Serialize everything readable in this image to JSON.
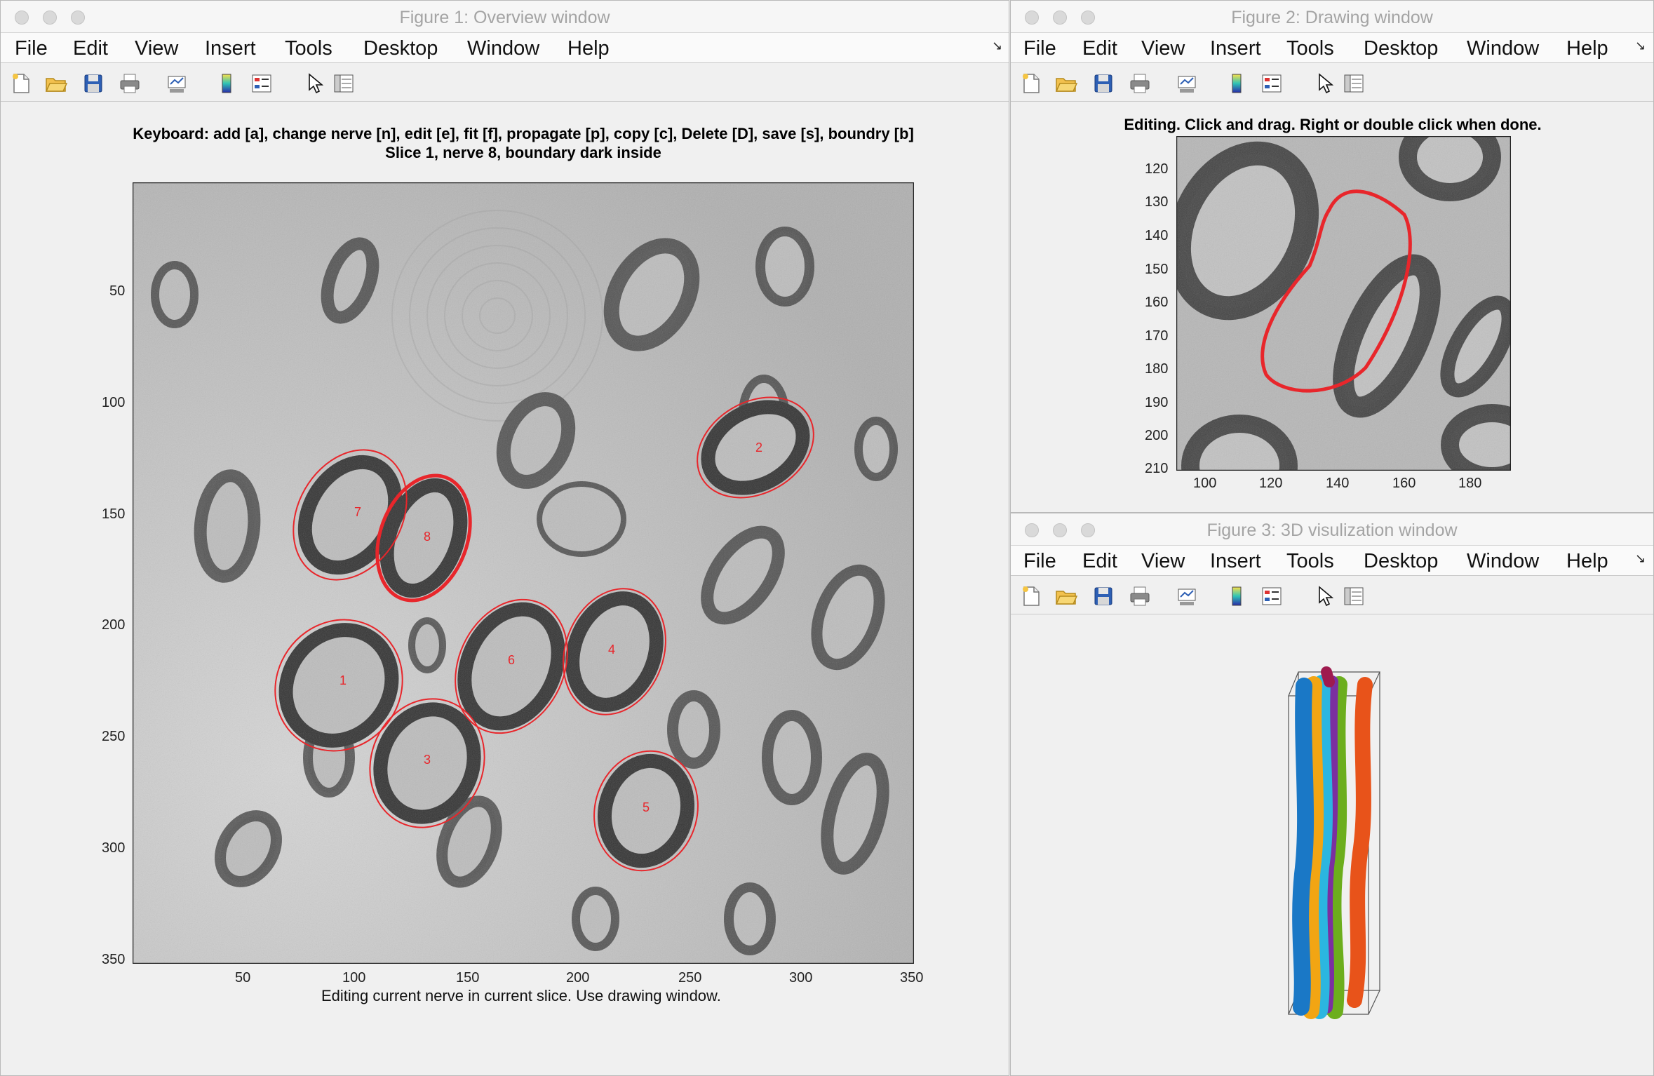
{
  "menu_items": [
    "File",
    "Edit",
    "View",
    "Insert",
    "Tools",
    "Desktop",
    "Window",
    "Help"
  ],
  "fig1": {
    "title": "Figure 1: Overview window",
    "header_line1": "Keyboard: add [a], change nerve [n], edit [e], fit [f], propagate [p], copy [c], Delete [D], save [s], boundry [b]",
    "header_line2": "Slice 1, nerve 8, boundary dark inside",
    "status": "Editing current nerve in current slice. Use drawing window.",
    "y_ticks": [
      "50",
      "100",
      "150",
      "200",
      "250",
      "300",
      "350"
    ],
    "x_ticks": [
      "50",
      "100",
      "150",
      "200",
      "250",
      "300",
      "350"
    ],
    "nerve_labels": [
      "1",
      "2",
      "3",
      "4",
      "5",
      "6",
      "7",
      "8"
    ],
    "outline_color": "#e8262b"
  },
  "fig2": {
    "title": "Figure 2: Drawing window",
    "header": "Editing. Click and drag. Right or double click when done.",
    "y_ticks": [
      "120",
      "130",
      "140",
      "150",
      "160",
      "170",
      "180",
      "190",
      "200",
      "210"
    ],
    "x_ticks": [
      "100",
      "120",
      "140",
      "160",
      "180"
    ]
  },
  "fig3": {
    "title": "Figure 3: 3D visulization window",
    "tube_colors": [
      "#1a78c6",
      "#f2a513",
      "#2bb6e0",
      "#7b2fa0",
      "#6cae1d",
      "#e8531a",
      "#9e1b4f"
    ]
  },
  "toolbar_icons": [
    "new-figure-icon",
    "open-file-icon",
    "save-icon",
    "print-icon",
    "link-plot-icon",
    "colorbar-icon",
    "legend-icon",
    "pointer-icon",
    "property-inspector-icon"
  ]
}
